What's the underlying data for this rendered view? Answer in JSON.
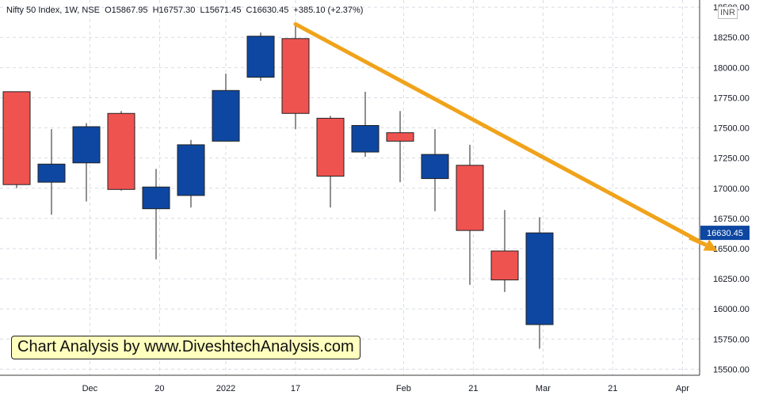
{
  "header": {
    "symbol": "Nifty 50 Index, 1W, NSE",
    "open": "O15867.95",
    "high": "H16757.30",
    "low": "L15671.45",
    "close": "C16630.45",
    "change": "+385.10 (+2.37%)"
  },
  "watermark": "Chart Analysis by www.DiveshtechAnalysis.com",
  "currency": "INR",
  "last_price_label": "16630.45",
  "colors": {
    "up": "#0d47a1",
    "down": "#ef5350",
    "trendline": "#f0a31a",
    "grid": "#d8dbe3",
    "axis_text": "#131722",
    "price_tag": "#0d47a1"
  },
  "chart_data": {
    "type": "candlestick",
    "ylim": [
      15450,
      18560
    ],
    "y_ticks": [
      "18500.00",
      "18250.00",
      "18000.00",
      "17750.00",
      "17500.00",
      "17250.00",
      "17000.00",
      "16750.00",
      "16500.00",
      "16250.00",
      "16000.00",
      "15750.00",
      "15500.00"
    ],
    "x_ticks": [
      "Dec",
      "20",
      "2022",
      "17",
      "Feb",
      "21",
      "Mar",
      "21",
      "Apr"
    ],
    "candles": [
      {
        "o": 17800,
        "h": 17800,
        "l": 17000,
        "c": 17030
      },
      {
        "o": 17050,
        "h": 17490,
        "l": 16780,
        "c": 17200
      },
      {
        "o": 17210,
        "h": 17540,
        "l": 16890,
        "c": 17510
      },
      {
        "o": 17620,
        "h": 17640,
        "l": 16980,
        "c": 16990
      },
      {
        "o": 16830,
        "h": 17160,
        "l": 16410,
        "c": 17010
      },
      {
        "o": 16940,
        "h": 17400,
        "l": 16840,
        "c": 17360
      },
      {
        "o": 17390,
        "h": 17950,
        "l": 17390,
        "c": 17810
      },
      {
        "o": 17920,
        "h": 18290,
        "l": 17890,
        "c": 18260
      },
      {
        "o": 18240,
        "h": 18350,
        "l": 17490,
        "c": 17620
      },
      {
        "o": 17580,
        "h": 17600,
        "l": 16840,
        "c": 17100
      },
      {
        "o": 17300,
        "h": 17800,
        "l": 17260,
        "c": 17520
      },
      {
        "o": 17460,
        "h": 17640,
        "l": 17050,
        "c": 17390
      },
      {
        "o": 17080,
        "h": 17490,
        "l": 16810,
        "c": 17280
      },
      {
        "o": 17190,
        "h": 17360,
        "l": 16200,
        "c": 16650
      },
      {
        "o": 16480,
        "h": 16820,
        "l": 16140,
        "c": 16240
      },
      {
        "o": 15870,
        "h": 16760,
        "l": 15670,
        "c": 16630
      }
    ],
    "trendline": {
      "from": [
        8,
        18360
      ],
      "to": [
        20.1,
        16480
      ]
    }
  }
}
